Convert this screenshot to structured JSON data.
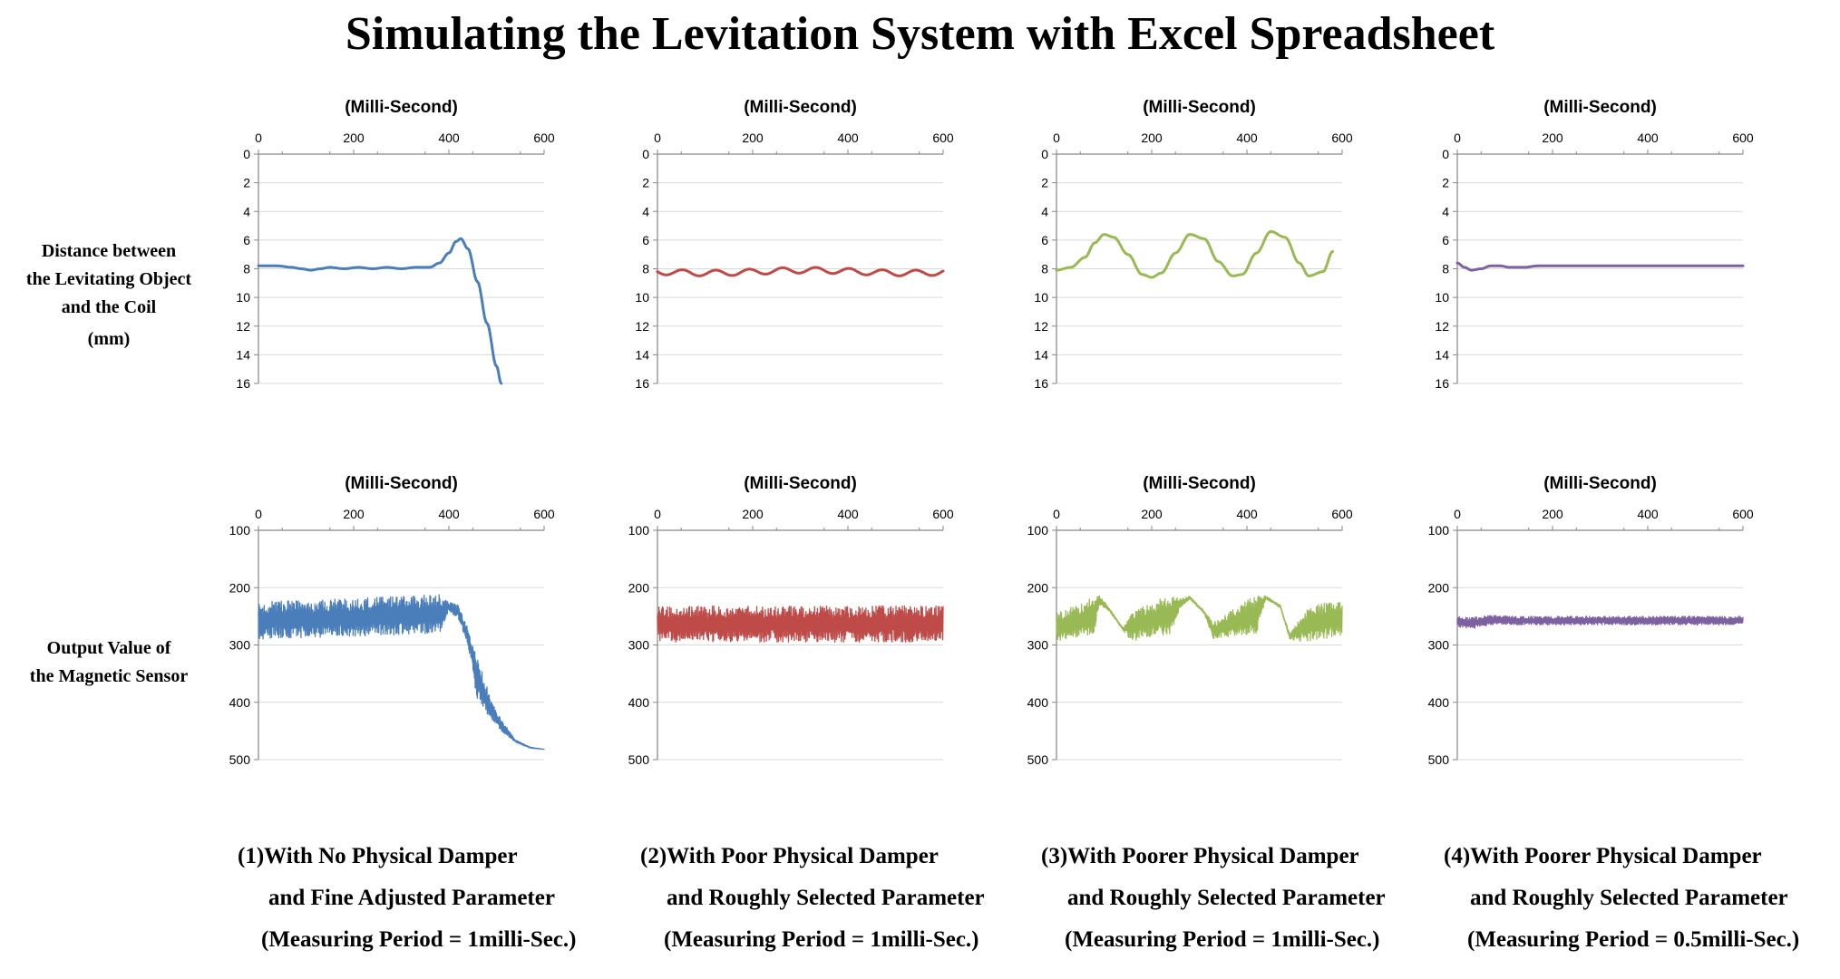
{
  "title": "Simulating the Levitation System with Excel Spreadsheet",
  "row_labels": {
    "distance": [
      "Distance between",
      "the Levitating Object",
      "and the Coil",
      "(mm)"
    ],
    "sensor": [
      "Output Value of",
      "the Magnetic Sensor"
    ]
  },
  "captions": [
    [
      "(1)With No Physical Damper",
      "and Fine Adjusted Parameter",
      "(Measuring Period = 1milli-Sec.)"
    ],
    [
      "(2)With Poor Physical Damper",
      "and Roughly Selected Parameter",
      "(Measuring Period = 1milli-Sec.)"
    ],
    [
      "(3)With Poorer Physical Damper",
      "and Roughly Selected Parameter",
      "(Measuring Period = 1milli-Sec.)"
    ],
    [
      "(4)With Poorer Physical Damper",
      "and Roughly Selected Parameter",
      "(Measuring Period = 0.5milli-Sec.)"
    ]
  ],
  "colors": {
    "s1": "#4a7ebb",
    "s2": "#be4b48",
    "s3": "#98b954",
    "s4": "#7d60a0",
    "grid": "#d9d9d9",
    "axis": "#868686"
  },
  "chart_data": [
    {
      "id": "c1-top",
      "type": "line",
      "color": "#4a7ebb",
      "xlabel": "(Milli-Second)",
      "ylabel": "Distance between the Levitating Object and the Coil (mm)",
      "xlim": [
        0,
        600
      ],
      "ylim": [
        0,
        16
      ],
      "y_reversed": true,
      "x_axis_position": "top",
      "xticks": [
        0,
        200,
        400,
        600
      ],
      "yticks": [
        0,
        2,
        4,
        6,
        8,
        10,
        12,
        14,
        16
      ],
      "x": [
        0,
        40,
        70,
        90,
        110,
        130,
        150,
        180,
        210,
        240,
        270,
        300,
        330,
        360,
        380,
        400,
        415,
        425,
        440,
        460,
        480,
        500,
        510
      ],
      "y": [
        7.8,
        7.8,
        7.9,
        8.0,
        8.1,
        8.0,
        7.9,
        8.0,
        7.9,
        8.0,
        7.9,
        8.0,
        7.9,
        7.9,
        7.6,
        6.9,
        6.1,
        5.9,
        6.6,
        8.9,
        11.8,
        14.8,
        16.0
      ]
    },
    {
      "id": "c2-top",
      "type": "line",
      "color": "#be4b48",
      "xlabel": "(Milli-Second)",
      "ylabel": "Distance between the Levitating Object and the Coil (mm)",
      "xlim": [
        0,
        600
      ],
      "ylim": [
        0,
        16
      ],
      "y_reversed": true,
      "x_axis_position": "top",
      "xticks": [
        0,
        200,
        400,
        600
      ],
      "yticks": [
        0,
        2,
        4,
        6,
        8,
        10,
        12,
        14,
        16
      ],
      "model": {
        "kind": "sine",
        "base": 8.2,
        "amplitude": 0.2,
        "period": 70,
        "drift_period": 420,
        "drift_amplitude": 0.1
      }
    },
    {
      "id": "c3-top",
      "type": "line",
      "color": "#98b954",
      "xlabel": "(Milli-Second)",
      "ylabel": "Distance between the Levitating Object and the Coil (mm)",
      "xlim": [
        0,
        600
      ],
      "ylim": [
        0,
        16
      ],
      "y_reversed": true,
      "x_axis_position": "top",
      "xticks": [
        0,
        200,
        400,
        600
      ],
      "yticks": [
        0,
        2,
        4,
        6,
        8,
        10,
        12,
        14,
        16
      ],
      "x": [
        0,
        30,
        60,
        80,
        100,
        120,
        150,
        180,
        200,
        220,
        250,
        280,
        310,
        340,
        370,
        390,
        420,
        450,
        480,
        510,
        530,
        560,
        580
      ],
      "y": [
        8.1,
        7.9,
        7.2,
        6.2,
        5.6,
        5.8,
        7.0,
        8.4,
        8.6,
        8.3,
        6.9,
        5.6,
        5.9,
        7.5,
        8.5,
        8.4,
        6.9,
        5.4,
        5.8,
        7.6,
        8.5,
        8.2,
        6.8
      ]
    },
    {
      "id": "c4-top",
      "type": "line",
      "color": "#7d60a0",
      "xlabel": "(Milli-Second)",
      "ylabel": "Distance between the Levitating Object and the Coil (mm)",
      "xlim": [
        0,
        600
      ],
      "ylim": [
        0,
        16
      ],
      "y_reversed": true,
      "x_axis_position": "top",
      "xticks": [
        0,
        200,
        400,
        600
      ],
      "yticks": [
        0,
        2,
        4,
        6,
        8,
        10,
        12,
        14,
        16
      ],
      "x": [
        0,
        15,
        30,
        50,
        70,
        90,
        110,
        140,
        170,
        200,
        250,
        300,
        400,
        500,
        600
      ],
      "y": [
        7.6,
        7.9,
        8.1,
        8.0,
        7.8,
        7.8,
        7.9,
        7.9,
        7.8,
        7.8,
        7.8,
        7.8,
        7.8,
        7.8,
        7.8
      ]
    },
    {
      "id": "c1-bottom",
      "type": "line",
      "color": "#4a7ebb",
      "xlabel": "(Milli-Second)",
      "ylabel": "Output Value of the Magnetic Sensor",
      "xlim": [
        0,
        600
      ],
      "ylim": [
        100,
        500
      ],
      "y_reversed": true,
      "x_axis_position": "top",
      "xticks": [
        0,
        200,
        400,
        600
      ],
      "yticks": [
        100,
        200,
        300,
        400,
        500
      ],
      "model": {
        "kind": "noisy-band",
        "band": [
          [
            0,
            225,
            290
          ],
          [
            380,
            212,
            280
          ],
          [
            400,
            225,
            240
          ],
          [
            420,
            230,
            255
          ],
          [
            440,
            270,
            300
          ],
          [
            460,
            320,
            400
          ],
          [
            490,
            400,
            430
          ],
          [
            510,
            430,
            450
          ],
          [
            540,
            465,
            470
          ],
          [
            570,
            478,
            480
          ],
          [
            600,
            482,
            482
          ]
        ]
      }
    },
    {
      "id": "c2-bottom",
      "type": "line",
      "color": "#be4b48",
      "xlabel": "(Milli-Second)",
      "ylabel": "Output Value of the Magnetic Sensor",
      "xlim": [
        0,
        600
      ],
      "ylim": [
        100,
        500
      ],
      "y_reversed": true,
      "x_axis_position": "top",
      "xticks": [
        0,
        200,
        400,
        600
      ],
      "yticks": [
        100,
        200,
        300,
        400,
        500
      ],
      "model": {
        "kind": "noisy-band",
        "band": [
          [
            0,
            232,
            295
          ],
          [
            600,
            232,
            295
          ]
        ]
      }
    },
    {
      "id": "c3-bottom",
      "type": "line",
      "color": "#98b954",
      "xlabel": "(Milli-Second)",
      "ylabel": "Output Value of the Magnetic Sensor",
      "xlim": [
        0,
        600
      ],
      "ylim": [
        100,
        500
      ],
      "y_reversed": true,
      "x_axis_position": "top",
      "xticks": [
        0,
        200,
        400,
        600
      ],
      "yticks": [
        100,
        200,
        300,
        400,
        500
      ],
      "model": {
        "kind": "noisy-band",
        "band": [
          [
            0,
            245,
            295
          ],
          [
            80,
            215,
            280
          ],
          [
            90,
            212,
            230
          ],
          [
            110,
            235,
            240
          ],
          [
            140,
            270,
            275
          ],
          [
            160,
            240,
            295
          ],
          [
            240,
            212,
            280
          ],
          [
            260,
            220,
            235
          ],
          [
            280,
            215,
            220
          ],
          [
            310,
            240,
            245
          ],
          [
            330,
            260,
            290
          ],
          [
            420,
            212,
            280
          ],
          [
            440,
            215,
            220
          ],
          [
            470,
            230,
            235
          ],
          [
            490,
            280,
            290
          ],
          [
            520,
            240,
            295
          ],
          [
            600,
            212,
            290
          ]
        ]
      }
    },
    {
      "id": "c4-bottom",
      "type": "line",
      "color": "#7d60a0",
      "xlabel": "(Milli-Second)",
      "ylabel": "Output Value of the Magnetic Sensor",
      "xlim": [
        0,
        600
      ],
      "ylim": [
        100,
        500
      ],
      "y_reversed": true,
      "x_axis_position": "top",
      "xticks": [
        0,
        200,
        400,
        600
      ],
      "yticks": [
        100,
        200,
        300,
        400,
        500
      ],
      "model": {
        "kind": "noisy-band",
        "band": [
          [
            0,
            250,
            268
          ],
          [
            30,
            252,
            272
          ],
          [
            70,
            248,
            265
          ],
          [
            120,
            250,
            265
          ],
          [
            600,
            250,
            265
          ]
        ]
      }
    }
  ]
}
